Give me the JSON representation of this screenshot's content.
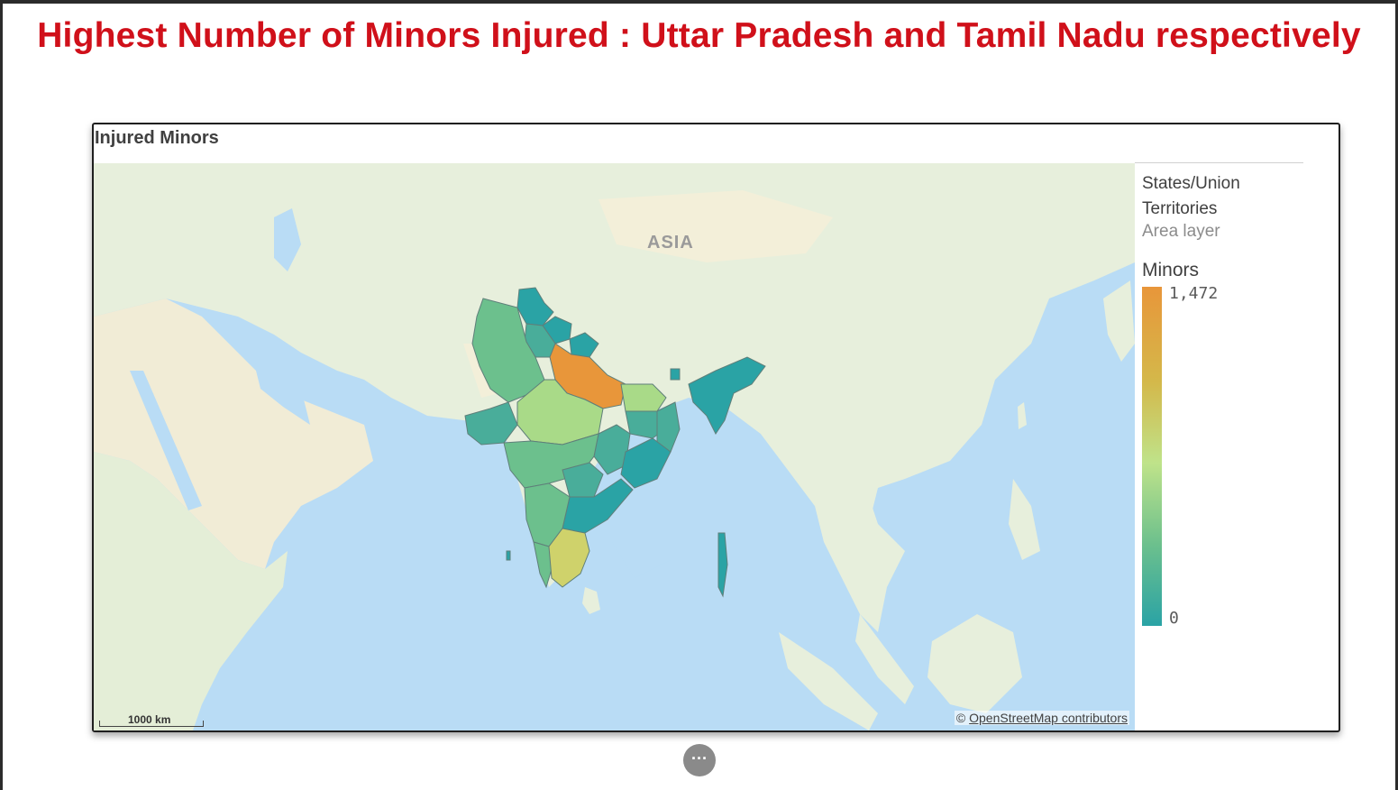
{
  "slide": {
    "title": "Highest Number of Minors Injured : Uttar Pradesh and Tamil Nadu respectively",
    "title_color": "#d0101a"
  },
  "panel": {
    "title": "Injured Minors"
  },
  "map": {
    "continent_label": "ASIA",
    "attribution_prefix": "©",
    "attribution_link": "OpenStreetMap contributors",
    "scale_label": "1000 km",
    "land_color": "#e7efdc",
    "sea_color": "#b9dcf5"
  },
  "legend": {
    "layer_name": "States/Union Territories",
    "layer_type": "Area layer",
    "measure": "Minors",
    "max_label": "1,472",
    "min_label": "0",
    "gradient_colors": [
      "#e8963a",
      "#d4b84a",
      "#bfe38a",
      "#6cc08d",
      "#2aa3a5"
    ]
  },
  "controls": {
    "more_button_icon": "ellipsis-icon",
    "more_button_label": "···"
  }
}
